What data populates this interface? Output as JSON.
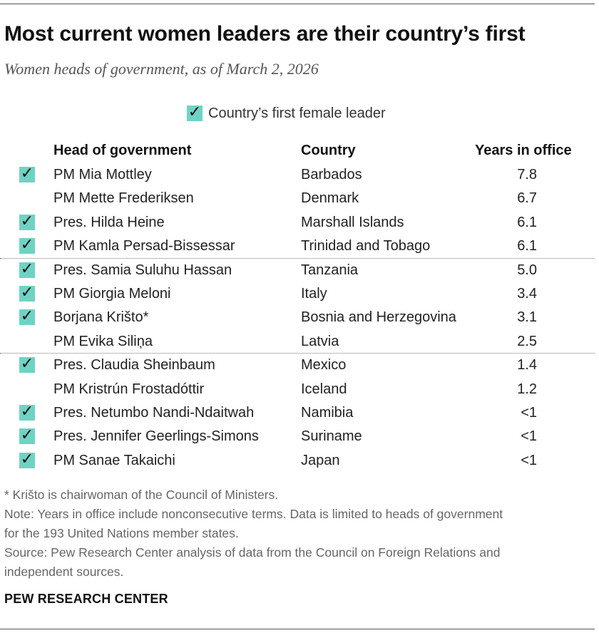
{
  "title": "Most current women leaders are their country’s first",
  "subtitle": "Women heads of government, as of March 2, 2026",
  "legend": {
    "label": "Country’s first female leader",
    "check_glyph": "✓",
    "check_color": "#6fd3c4"
  },
  "chart_data": {
    "type": "table",
    "columns": [
      "Head of government",
      "Country",
      "Years in office"
    ],
    "rows": [
      {
        "name": "PM Mia Mottley",
        "country": "Barbados",
        "years": "7.8",
        "first": true
      },
      {
        "name": "PM Mette Frederiksen",
        "country": "Denmark",
        "years": "6.7",
        "first": false
      },
      {
        "name": "Pres. Hilda Heine",
        "country": "Marshall Islands",
        "years": "6.1",
        "first": true
      },
      {
        "name": "PM Kamla Persad-Bissessar",
        "country": "Trinidad and Tobago",
        "years": "6.1",
        "first": true
      },
      {
        "name": "Pres. Samia Suluhu Hassan",
        "country": "Tanzania",
        "years": "5.0",
        "first": true
      },
      {
        "name": "PM Giorgia Meloni",
        "country": "Italy",
        "years": "3.4",
        "first": true
      },
      {
        "name": "Borjana Krišto*",
        "country": "Bosnia and Herzegovina",
        "years": "3.1",
        "first": true
      },
      {
        "name": "PM Evika Siliņa",
        "country": "Latvia",
        "years": "2.5",
        "first": false
      },
      {
        "name": "Pres. Claudia Sheinbaum",
        "country": "Mexico",
        "years": "1.4",
        "first": true
      },
      {
        "name": "PM Kristrún Frostadóttir",
        "country": "Iceland",
        "years": "1.2",
        "first": false
      },
      {
        "name": "Pres. Netumbo Nandi-Ndaitwah",
        "country": "Namibia",
        "years": "<1",
        "first": true
      },
      {
        "name": "Pres. Jennifer Geerlings-Simons",
        "country": "Suriname",
        "years": "<1",
        "first": true
      },
      {
        "name": "PM Sanae Takaichi",
        "country": "Japan",
        "years": "<1",
        "first": true
      }
    ],
    "group_breaks_after_rows": [
      3,
      7
    ]
  },
  "footnotes": {
    "asterisk": "* Krišto is chairwoman of the Council of Ministers.",
    "note_line1": "Note: Years in office include nonconsecutive terms. Data is limited to heads of government",
    "note_line2": "for the 193 United Nations member states.",
    "source_line1": "Source: Pew Research Center analysis of data from the Council on Foreign Relations and",
    "source_line2": "independent sources."
  },
  "brand": "PEW RESEARCH CENTER"
}
